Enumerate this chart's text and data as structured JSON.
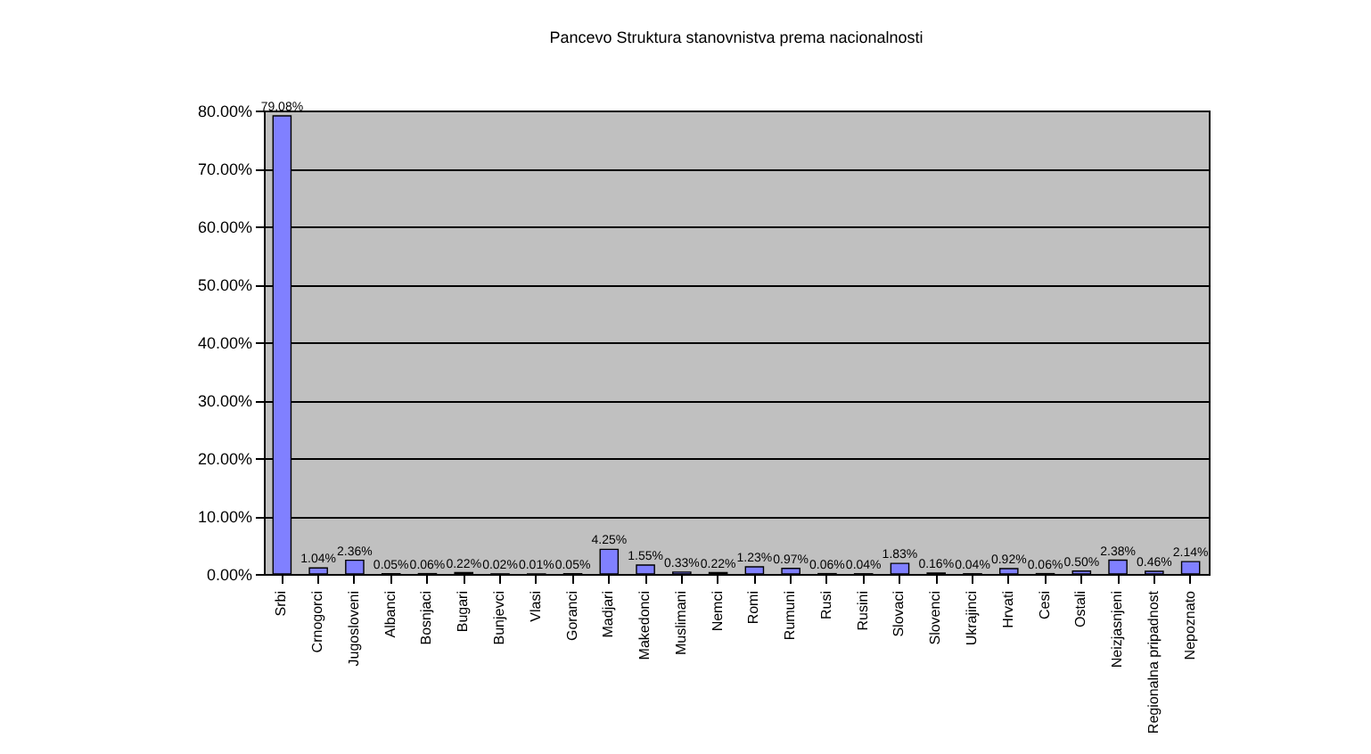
{
  "chart_data": {
    "type": "bar",
    "title": "Pancevo Struktura stanovnistva prema nacionalnosti",
    "categories": [
      "Srbi",
      "Crnogorci",
      "Jugosloveni",
      "Albanci",
      "Bosnjaci",
      "Bugari",
      "Bunjevci",
      "Vlasi",
      "Goranci",
      "Madjari",
      "Makedonci",
      "Muslimani",
      "Nemci",
      "Romi",
      "Rumuni",
      "Rusi",
      "Rusini",
      "Slovaci",
      "Slovenci",
      "Ukrajinci",
      "Hrvati",
      "Cesi",
      "Ostali",
      "Neizjasnjeni",
      "Regionalna pripadnost",
      "Nepoznato"
    ],
    "values": [
      79.08,
      1.04,
      2.36,
      0.05,
      0.06,
      0.22,
      0.02,
      0.01,
      0.05,
      4.25,
      1.55,
      0.33,
      0.22,
      1.23,
      0.97,
      0.06,
      0.04,
      1.83,
      0.16,
      0.04,
      0.92,
      0.06,
      0.5,
      2.38,
      0.46,
      2.14
    ],
    "value_labels": [
      "79.08%",
      "1.04%",
      "2.36%",
      "0.05%",
      "0.06%",
      "0.22%",
      "0.02%",
      "0.01%",
      "0.05%",
      "4.25%",
      "1.55%",
      "0.33%",
      "0.22%",
      "1.23%",
      "0.97%",
      "0.06%",
      "0.04%",
      "1.83%",
      "0.16%",
      "0.04%",
      "0.92%",
      "0.06%",
      "0.50%",
      "2.38%",
      "0.46%",
      "2.14%"
    ],
    "color": "#8080ff",
    "ylim": [
      0,
      80
    ],
    "yticks": [
      {
        "value": 0,
        "label": "0.00%"
      },
      {
        "value": 10,
        "label": "10.00%"
      },
      {
        "value": 20,
        "label": "20.00%"
      },
      {
        "value": 30,
        "label": "30.00%"
      },
      {
        "value": 40,
        "label": "40.00%"
      },
      {
        "value": 50,
        "label": "50.00%"
      },
      {
        "value": 60,
        "label": "60.00%"
      },
      {
        "value": 70,
        "label": "70.00%"
      },
      {
        "value": 80,
        "label": "80.00%"
      }
    ],
    "grid": "y"
  }
}
